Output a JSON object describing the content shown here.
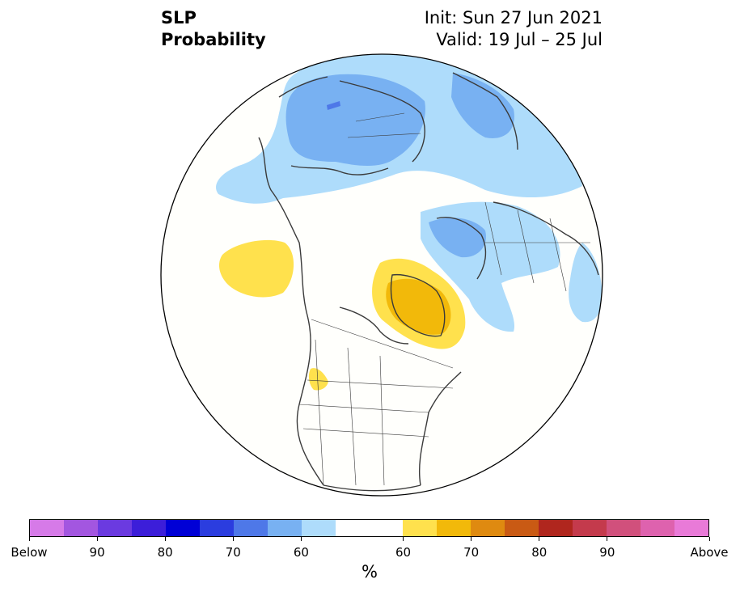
{
  "title": {
    "line1": "SLP",
    "line2": "Probability",
    "init": "Init: Sun 27 Jun 2021",
    "valid": "Valid: 19 Jul – 25 Jul"
  },
  "colorbar": {
    "unit": "%",
    "colors": [
      "#d67ae8",
      "#a356e0",
      "#6b3ae0",
      "#3c1ed9",
      "#0000d6",
      "#2b3ddf",
      "#4e78e8",
      "#78b1f2",
      "#aedcfb",
      "#ffffff",
      "#ffffff",
      "#ffe14d",
      "#f2b90a",
      "#df8a10",
      "#c95a14",
      "#b0261e",
      "#c43a4c",
      "#d1507c",
      "#de62ae",
      "#e97ad8"
    ],
    "tick_labels": [
      "Below",
      "90",
      "80",
      "70",
      "60",
      "60",
      "70",
      "80",
      "90",
      "Above"
    ]
  },
  "map": {
    "projection": "polar-stereographic",
    "fill_colors": {
      "below_light": "#aedcfb",
      "below_mid": "#78b1f2",
      "below_dark": "#4e78e8",
      "above_light": "#ffe14d",
      "above_mid": "#f2b90a"
    }
  }
}
